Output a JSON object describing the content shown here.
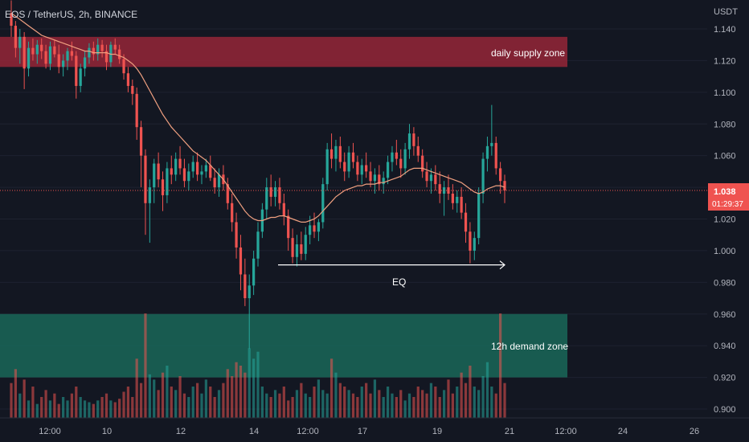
{
  "header": {
    "symbol_title": "EOS / TetherUS, 2h, BINANCE"
  },
  "price_axis": {
    "currency": "USDT",
    "ticks": [
      "1.140",
      "1.120",
      "1.100",
      "1.080",
      "1.060",
      "1.040",
      "1.020",
      "1.000",
      "0.980",
      "0.960",
      "0.940",
      "0.920",
      "0.900"
    ]
  },
  "time_axis": {
    "ticks": [
      "12:00",
      "10",
      "12",
      "14",
      "12:00",
      "17",
      "19",
      "21",
      "12:00",
      "24",
      "26"
    ]
  },
  "current_price": {
    "value": "1.038",
    "countdown": "01:29:37",
    "color": "#ef5350"
  },
  "annotations": {
    "supply_zone_label": "daily supply zone",
    "demand_zone_label": "12h demand zone",
    "eq_label": "EQ"
  },
  "colors": {
    "background": "#131722",
    "up": "#26a69a",
    "down": "#ef5350",
    "ma_line": "#f0a080",
    "supply_zone": "#a0273a",
    "demand_zone": "#1a6e5e"
  },
  "chart_data": {
    "type": "candlestick",
    "y_range": [
      0.895,
      1.145
    ],
    "supply_zone": [
      1.116,
      1.135
    ],
    "demand_zone": [
      0.92,
      0.96
    ],
    "eq_level": 0.991,
    "candles": [
      [
        1.15,
        1.158,
        1.135,
        1.142
      ],
      [
        1.142,
        1.145,
        1.122,
        1.128
      ],
      [
        1.128,
        1.14,
        1.118,
        1.135
      ],
      [
        1.135,
        1.138,
        1.102,
        1.115
      ],
      [
        1.115,
        1.132,
        1.11,
        1.128
      ],
      [
        1.128,
        1.134,
        1.12,
        1.124
      ],
      [
        1.124,
        1.133,
        1.118,
        1.13
      ],
      [
        1.13,
        1.134,
        1.121,
        1.126
      ],
      [
        1.126,
        1.13,
        1.115,
        1.118
      ],
      [
        1.118,
        1.132,
        1.114,
        1.129
      ],
      [
        1.129,
        1.133,
        1.122,
        1.124
      ],
      [
        1.124,
        1.13,
        1.112,
        1.116
      ],
      [
        1.116,
        1.124,
        1.11,
        1.12
      ],
      [
        1.12,
        1.128,
        1.114,
        1.126
      ],
      [
        1.126,
        1.132,
        1.12,
        1.123
      ],
      [
        1.123,
        1.126,
        1.096,
        1.104
      ],
      [
        1.104,
        1.118,
        1.1,
        1.115
      ],
      [
        1.115,
        1.126,
        1.11,
        1.122
      ],
      [
        1.122,
        1.131,
        1.118,
        1.128
      ],
      [
        1.128,
        1.132,
        1.12,
        1.124
      ],
      [
        1.124,
        1.134,
        1.12,
        1.13
      ],
      [
        1.13,
        1.133,
        1.122,
        1.126
      ],
      [
        1.126,
        1.13,
        1.114,
        1.119
      ],
      [
        1.119,
        1.132,
        1.116,
        1.13
      ],
      [
        1.13,
        1.134,
        1.124,
        1.127
      ],
      [
        1.127,
        1.13,
        1.118,
        1.121
      ],
      [
        1.121,
        1.124,
        1.108,
        1.112
      ],
      [
        1.112,
        1.116,
        1.1,
        1.104
      ],
      [
        1.104,
        1.108,
        1.092,
        1.099
      ],
      [
        1.099,
        1.103,
        1.07,
        1.078
      ],
      [
        1.078,
        1.082,
        1.04,
        1.06
      ],
      [
        1.06,
        1.064,
        1.01,
        1.03
      ],
      [
        1.03,
        1.045,
        1.005,
        1.04
      ],
      [
        1.04,
        1.058,
        1.03,
        1.055
      ],
      [
        1.055,
        1.062,
        1.04,
        1.045
      ],
      [
        1.045,
        1.05,
        1.025,
        1.035
      ],
      [
        1.035,
        1.056,
        1.03,
        1.052
      ],
      [
        1.052,
        1.06,
        1.042,
        1.048
      ],
      [
        1.048,
        1.062,
        1.044,
        1.058
      ],
      [
        1.058,
        1.066,
        1.048,
        1.052
      ],
      [
        1.052,
        1.058,
        1.04,
        1.044
      ],
      [
        1.044,
        1.055,
        1.038,
        1.05
      ],
      [
        1.05,
        1.06,
        1.046,
        1.056
      ],
      [
        1.056,
        1.062,
        1.044,
        1.048
      ],
      [
        1.048,
        1.054,
        1.042,
        1.05
      ],
      [
        1.05,
        1.058,
        1.046,
        1.054
      ],
      [
        1.054,
        1.06,
        1.044,
        1.046
      ],
      [
        1.046,
        1.052,
        1.036,
        1.04
      ],
      [
        1.04,
        1.052,
        1.034,
        1.048
      ],
      [
        1.048,
        1.054,
        1.038,
        1.042
      ],
      [
        1.042,
        1.046,
        1.026,
        1.03
      ],
      [
        1.03,
        1.036,
        1.012,
        1.018
      ],
      [
        1.018,
        1.024,
        0.995,
        1.002
      ],
      [
        1.002,
        1.01,
        0.975,
        0.985
      ],
      [
        0.985,
        0.995,
        0.965,
        0.97
      ],
      [
        0.97,
        0.985,
        0.938,
        0.978
      ],
      [
        0.978,
        1.0,
        0.972,
        0.995
      ],
      [
        0.995,
        1.018,
        0.99,
        1.012
      ],
      [
        1.012,
        1.03,
        1.008,
        1.026
      ],
      [
        1.026,
        1.046,
        1.02,
        1.04
      ],
      [
        1.04,
        1.048,
        1.028,
        1.034
      ],
      [
        1.034,
        1.044,
        1.028,
        1.04
      ],
      [
        1.04,
        1.046,
        1.026,
        1.03
      ],
      [
        1.03,
        1.036,
        1.016,
        1.022
      ],
      [
        1.022,
        1.026,
        1.0,
        1.008
      ],
      [
        1.008,
        1.014,
        0.992,
        0.996
      ],
      [
        0.996,
        1.01,
        0.99,
        1.004
      ],
      [
        1.004,
        1.012,
        0.994,
        0.998
      ],
      [
        0.998,
        1.015,
        0.994,
        1.01
      ],
      [
        1.01,
        1.022,
        1.004,
        1.016
      ],
      [
        1.016,
        1.024,
        1.008,
        1.012
      ],
      [
        1.012,
        1.02,
        1.006,
        1.018
      ],
      [
        1.018,
        1.046,
        1.014,
        1.042
      ],
      [
        1.042,
        1.068,
        1.038,
        1.064
      ],
      [
        1.064,
        1.074,
        1.052,
        1.058
      ],
      [
        1.058,
        1.07,
        1.05,
        1.066
      ],
      [
        1.066,
        1.072,
        1.052,
        1.056
      ],
      [
        1.056,
        1.062,
        1.044,
        1.05
      ],
      [
        1.05,
        1.066,
        1.046,
        1.062
      ],
      [
        1.062,
        1.068,
        1.052,
        1.056
      ],
      [
        1.056,
        1.06,
        1.044,
        1.048
      ],
      [
        1.048,
        1.058,
        1.042,
        1.054
      ],
      [
        1.054,
        1.062,
        1.046,
        1.05
      ],
      [
        1.05,
        1.056,
        1.04,
        1.044
      ],
      [
        1.044,
        1.052,
        1.036,
        1.048
      ],
      [
        1.048,
        1.054,
        1.038,
        1.042
      ],
      [
        1.042,
        1.05,
        1.036,
        1.046
      ],
      [
        1.046,
        1.06,
        1.042,
        1.056
      ],
      [
        1.056,
        1.066,
        1.05,
        1.062
      ],
      [
        1.062,
        1.07,
        1.054,
        1.058
      ],
      [
        1.058,
        1.064,
        1.046,
        1.052
      ],
      [
        1.052,
        1.068,
        1.048,
        1.064
      ],
      [
        1.064,
        1.08,
        1.058,
        1.074
      ],
      [
        1.074,
        1.078,
        1.06,
        1.066
      ],
      [
        1.066,
        1.072,
        1.056,
        1.06
      ],
      [
        1.06,
        1.064,
        1.046,
        1.05
      ],
      [
        1.05,
        1.056,
        1.04,
        1.044
      ],
      [
        1.044,
        1.052,
        1.036,
        1.048
      ],
      [
        1.048,
        1.054,
        1.038,
        1.042
      ],
      [
        1.042,
        1.05,
        1.03,
        1.036
      ],
      [
        1.036,
        1.044,
        1.022,
        1.04
      ],
      [
        1.04,
        1.048,
        1.032,
        1.036
      ],
      [
        1.036,
        1.042,
        1.026,
        1.03
      ],
      [
        1.03,
        1.038,
        1.024,
        1.034
      ],
      [
        1.034,
        1.04,
        1.02,
        1.024
      ],
      [
        1.024,
        1.03,
        1.005,
        1.012
      ],
      [
        1.012,
        1.018,
        0.992,
        1.0
      ],
      [
        1.0,
        1.012,
        0.994,
        1.008
      ],
      [
        1.008,
        1.04,
        1.004,
        1.036
      ],
      [
        1.036,
        1.062,
        1.03,
        1.058
      ],
      [
        1.058,
        1.072,
        1.05,
        1.066
      ],
      [
        1.066,
        1.092,
        1.06,
        1.068
      ],
      [
        1.068,
        1.072,
        1.048,
        1.052
      ],
      [
        1.052,
        1.056,
        1.036,
        1.044
      ],
      [
        1.044,
        1.048,
        1.03,
        1.038
      ]
    ],
    "volumes": [
      20,
      28,
      14,
      22,
      10,
      18,
      8,
      12,
      16,
      10,
      14,
      8,
      12,
      10,
      14,
      18,
      12,
      10,
      9,
      8,
      10,
      12,
      14,
      10,
      9,
      11,
      15,
      18,
      12,
      34,
      20,
      60,
      25,
      22,
      16,
      26,
      30,
      18,
      16,
      24,
      14,
      12,
      18,
      20,
      14,
      22,
      18,
      12,
      16,
      20,
      28,
      24,
      32,
      30,
      26,
      40,
      34,
      38,
      18,
      14,
      12,
      16,
      14,
      18,
      10,
      12,
      16,
      20,
      14,
      12,
      18,
      22,
      16,
      14,
      34,
      26,
      20,
      18,
      16,
      14,
      12,
      18,
      20,
      14,
      22,
      16,
      12,
      18,
      14,
      12,
      16,
      10,
      14,
      12,
      18,
      16,
      14,
      20,
      18,
      12,
      16,
      22,
      14,
      18,
      26,
      20,
      30,
      18,
      16,
      24,
      32,
      18,
      14,
      60,
      20,
      16
    ],
    "ma_values": [
      1.15,
      1.148,
      1.146,
      1.144,
      1.142,
      1.14,
      1.138,
      1.136,
      1.135,
      1.134,
      1.133,
      1.132,
      1.131,
      1.13,
      1.129,
      1.128,
      1.127,
      1.126,
      1.126,
      1.125,
      1.125,
      1.125,
      1.125,
      1.124,
      1.124,
      1.123,
      1.122,
      1.12,
      1.118,
      1.115,
      1.111,
      1.106,
      1.101,
      1.096,
      1.091,
      1.086,
      1.082,
      1.078,
      1.075,
      1.072,
      1.069,
      1.066,
      1.063,
      1.061,
      1.059,
      1.057,
      1.054,
      1.051,
      1.048,
      1.045,
      1.041,
      1.037,
      1.033,
      1.029,
      1.025,
      1.022,
      1.02,
      1.019,
      1.019,
      1.02,
      1.021,
      1.021,
      1.022,
      1.022,
      1.021,
      1.02,
      1.019,
      1.018,
      1.018,
      1.019,
      1.02,
      1.022,
      1.025,
      1.028,
      1.031,
      1.034,
      1.036,
      1.038,
      1.039,
      1.04,
      1.041,
      1.041,
      1.042,
      1.042,
      1.042,
      1.043,
      1.043,
      1.044,
      1.045,
      1.046,
      1.047,
      1.049,
      1.051,
      1.052,
      1.052,
      1.052,
      1.051,
      1.05,
      1.049,
      1.048,
      1.047,
      1.046,
      1.045,
      1.044,
      1.043,
      1.041,
      1.039,
      1.037,
      1.036,
      1.037,
      1.039,
      1.04,
      1.041,
      1.041,
      1.04
    ]
  }
}
